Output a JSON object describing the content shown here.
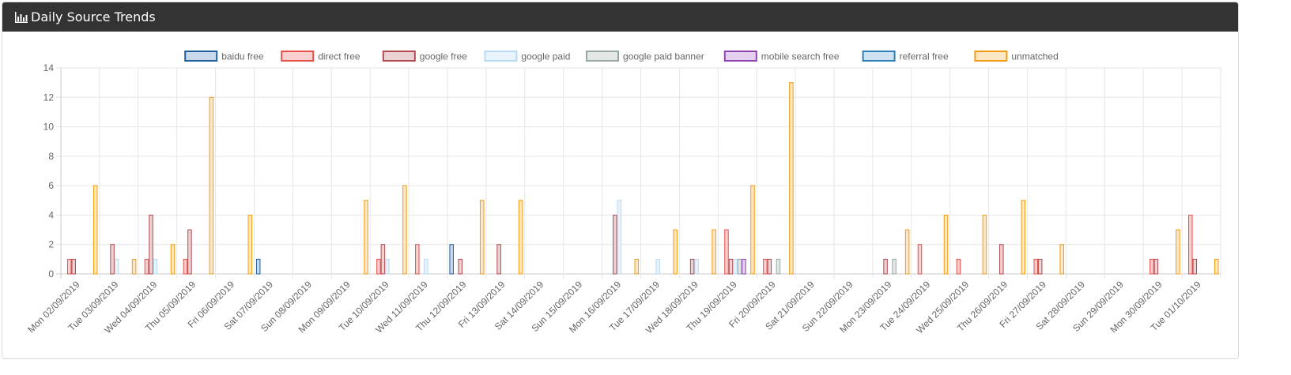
{
  "panel": {
    "title": "Daily Source Trends",
    "icon": "bar-chart-icon"
  },
  "chart_data": {
    "type": "bar",
    "title": "",
    "xlabel": "",
    "ylabel": "",
    "ylim": [
      0,
      14
    ],
    "yticks": [
      0,
      2,
      4,
      6,
      8,
      10,
      12,
      14
    ],
    "grid": true,
    "legend_position": "top",
    "categories": [
      "Mon 02/09/2019",
      "Tue 03/09/2019",
      "Wed 04/09/2019",
      "Thu 05/09/2019",
      "Fri 06/09/2019",
      "Sat 07/09/2019",
      "Sun 08/09/2019",
      "Mon 09/09/2019",
      "Tue 10/09/2019",
      "Wed 11/09/2019",
      "Thu 12/09/2019",
      "Fri 13/09/2019",
      "Sat 14/09/2019",
      "Sun 15/09/2019",
      "Mon 16/09/2019",
      "Tue 17/09/2019",
      "Wed 18/09/2019",
      "Thu 19/09/2019",
      "Fri 20/09/2019",
      "Sat 21/09/2019",
      "Sun 22/09/2019",
      "Mon 23/09/2019",
      "Tue 24/09/2019",
      "Wed 25/09/2019",
      "Thu 26/09/2019",
      "Fri 27/09/2019",
      "Sat 28/09/2019",
      "Sun 29/09/2019",
      "Mon 30/09/2019",
      "Tue 01/10/2019"
    ],
    "series": [
      {
        "name": "baidu free",
        "border": "#1f5f9e",
        "fill": "#c9d8ea",
        "values": [
          0,
          0,
          0,
          0,
          0,
          1,
          0,
          0,
          0,
          0,
          2,
          0,
          0,
          0,
          0,
          0,
          0,
          0,
          0,
          0,
          0,
          0,
          0,
          0,
          0,
          0,
          0,
          0,
          0,
          0
        ]
      },
      {
        "name": "direct free",
        "border": "#e8504a",
        "fill": "#f9d0cf",
        "values": [
          1,
          0,
          1,
          1,
          0,
          0,
          0,
          0,
          1,
          2,
          0,
          0,
          0,
          0,
          0,
          0,
          0,
          3,
          1,
          0,
          0,
          0,
          2,
          1,
          0,
          1,
          0,
          0,
          1,
          4
        ]
      },
      {
        "name": "google free",
        "border": "#b04a50",
        "fill": "#ebd2d4",
        "values": [
          1,
          2,
          4,
          3,
          0,
          0,
          0,
          0,
          2,
          0,
          1,
          2,
          0,
          0,
          4,
          0,
          1,
          1,
          1,
          0,
          0,
          1,
          0,
          0,
          2,
          1,
          0,
          0,
          1,
          1
        ]
      },
      {
        "name": "google paid",
        "border": "#b8d9f2",
        "fill": "#e8f3fc",
        "values": [
          0,
          1,
          1,
          0,
          0,
          0,
          0,
          0,
          1,
          1,
          0,
          0,
          0,
          0,
          5,
          1,
          1,
          1,
          0,
          0,
          0,
          0,
          0,
          0,
          0,
          0,
          0,
          0,
          0,
          0
        ]
      },
      {
        "name": "google paid banner",
        "border": "#9aa8a4",
        "fill": "#e3e8e6",
        "values": [
          0,
          0,
          0,
          0,
          0,
          0,
          0,
          0,
          0,
          0,
          0,
          0,
          0,
          0,
          0,
          0,
          0,
          1,
          1,
          0,
          0,
          1,
          0,
          0,
          0,
          0,
          0,
          0,
          0,
          0
        ]
      },
      {
        "name": "mobile search free",
        "border": "#8e44ad",
        "fill": "#e5d0ef",
        "values": [
          0,
          0,
          0,
          0,
          0,
          0,
          0,
          0,
          0,
          0,
          0,
          0,
          0,
          0,
          0,
          0,
          0,
          1,
          0,
          0,
          0,
          0,
          0,
          0,
          0,
          0,
          0,
          0,
          0,
          0
        ]
      },
      {
        "name": "referral free",
        "border": "#2d7fb8",
        "fill": "#cfe2f1",
        "values": [
          0,
          0,
          0,
          0,
          0,
          0,
          0,
          0,
          0,
          0,
          0,
          0,
          0,
          0,
          0,
          0,
          0,
          0,
          0,
          0,
          0,
          0,
          0,
          0,
          0,
          0,
          0,
          0,
          0,
          0
        ]
      },
      {
        "name": "unmatched",
        "border": "#f39c12",
        "fill": "#fde7c4",
        "values": [
          6,
          1,
          2,
          12,
          4,
          0,
          0,
          5,
          6,
          0,
          5,
          5,
          0,
          0,
          1,
          3,
          3,
          6,
          13,
          0,
          0,
          3,
          4,
          4,
          5,
          2,
          0,
          0,
          3,
          1
        ]
      }
    ]
  }
}
